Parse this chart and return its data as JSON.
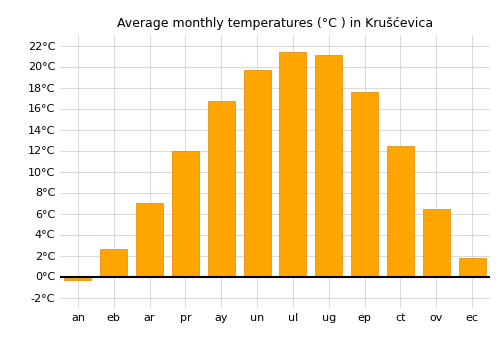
{
  "title": "Average monthly temperatures (°C ) in Krušćevica",
  "months": [
    "an",
    "eb",
    "ar",
    "pr",
    "ay",
    "un",
    "ul",
    "ug",
    "ep",
    "ct",
    "ov",
    "ec"
  ],
  "values": [
    -0.3,
    2.6,
    7.0,
    12.0,
    16.7,
    19.7,
    21.4,
    21.1,
    17.6,
    12.4,
    6.4,
    1.8
  ],
  "bar_color": "#FFA500",
  "bar_edge_color": "#E08800",
  "ylim": [
    -3,
    23
  ],
  "yticks": [
    -2,
    0,
    2,
    4,
    6,
    8,
    10,
    12,
    14,
    16,
    18,
    20,
    22
  ],
  "grid_color": "#cccccc",
  "background_color": "#ffffff",
  "title_fontsize": 9,
  "tick_fontsize": 8,
  "bar_width": 0.75
}
